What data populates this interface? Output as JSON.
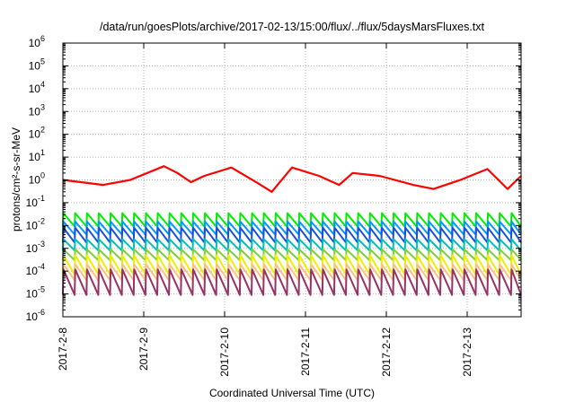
{
  "chart_data": {
    "type": "line",
    "title": "/data/run/goesPlots/archive/2017-02-13/15:00/flux/../flux/5daysMarsFluxes.txt",
    "xlabel": "Coordinated Universal Time (UTC)",
    "ylabel": "protons/cm²-s-sr-MeV",
    "y_scale": "log",
    "ylim": [
      "1e-6",
      "1e6"
    ],
    "xlim": [
      "2017-02-08T00:00",
      "2017-02-13T16:00"
    ],
    "x_ticks": [
      "2017-2-8",
      "2017-2-9",
      "2017-2-10",
      "2017-2-11",
      "2017-2-12",
      "2017-2-13"
    ],
    "y_tick_exponents": [
      -6,
      -5,
      -4,
      -3,
      -2,
      -1,
      0,
      1,
      2,
      3,
      4,
      5,
      6
    ],
    "grid": true,
    "legend": "none",
    "series_note": "Each series is a sawtooth with a period of about 3.5 hours (a slow decline between instant jumps up). Its trend ranges between the band_low and band_high values shown.",
    "series": [
      {
        "color": "#ff0000",
        "kind": "trend",
        "x": [
          "2017-02-08T00:00",
          "2017-02-08T12:00",
          "2017-02-08T20:00",
          "2017-02-09T06:00",
          "2017-02-09T10:00",
          "2017-02-09T14:00",
          "2017-02-09T18:00",
          "2017-02-10T02:00",
          "2017-02-10T10:00",
          "2017-02-10T14:00",
          "2017-02-10T20:00",
          "2017-02-11T04:00",
          "2017-02-11T10:00",
          "2017-02-11T14:00",
          "2017-02-11T22:00",
          "2017-02-12T08:00",
          "2017-02-12T14:00",
          "2017-02-12T22:00",
          "2017-02-13T06:00",
          "2017-02-13T12:00",
          "2017-02-13T16:00"
        ],
        "y": [
          1.0,
          0.6,
          1.0,
          4.0,
          2.0,
          0.8,
          1.5,
          3.5,
          0.7,
          0.3,
          3.5,
          1.5,
          0.6,
          2.0,
          1.5,
          0.6,
          0.4,
          1.0,
          3.0,
          0.4,
          1.5
        ]
      },
      {
        "color": "#00ee00",
        "band_low": 0.009,
        "band_high": 0.035
      },
      {
        "color": "#0099ff",
        "band_low": 0.004,
        "band_high": 0.015
      },
      {
        "color": "#1a4fd8",
        "band_low": 0.0018,
        "band_high": 0.008
      },
      {
        "color": "#00c0b8",
        "band_low": 0.0008,
        "band_high": 0.0025
      },
      {
        "color": "#7ecf3a",
        "band_low": 0.0003,
        "band_high": 0.0009
      },
      {
        "color": "#eeee00",
        "band_low": 7e-05,
        "band_high": 0.0005
      },
      {
        "color": "#ffbf80",
        "band_low": 4e-05,
        "band_high": 0.0002
      },
      {
        "color": "#993366",
        "band_low": 9e-06,
        "band_high": 0.00012
      }
    ]
  }
}
